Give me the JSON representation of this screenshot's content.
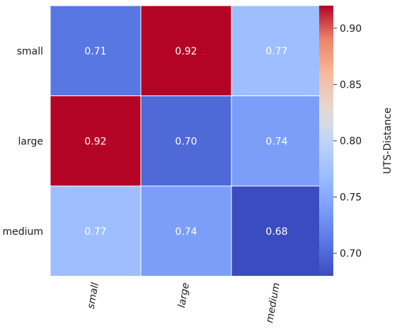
{
  "chart_data": {
    "type": "heatmap",
    "row_labels": [
      "small",
      "large",
      "medium"
    ],
    "col_labels": [
      "small",
      "large",
      "medium"
    ],
    "values": [
      [
        0.71,
        0.92,
        0.77
      ],
      [
        0.92,
        0.7,
        0.74
      ],
      [
        0.77,
        0.74,
        0.68
      ]
    ],
    "value_format": "2 decimals",
    "colormap": "coolwarm",
    "colorbar": {
      "label": "UTS-Distance",
      "range": [
        0.68,
        0.92
      ],
      "ticks": [
        0.7,
        0.75,
        0.8,
        0.85,
        0.9
      ],
      "tick_labels": [
        "0.70",
        "0.75",
        "0.80",
        "0.85",
        "0.90"
      ]
    },
    "col_label_rotation": "vertical, italic",
    "grid": true,
    "colors": {
      "cell_border": "#ffffff",
      "annotation_text": "#ffffff",
      "axis_text": "#1a1a1a"
    }
  }
}
